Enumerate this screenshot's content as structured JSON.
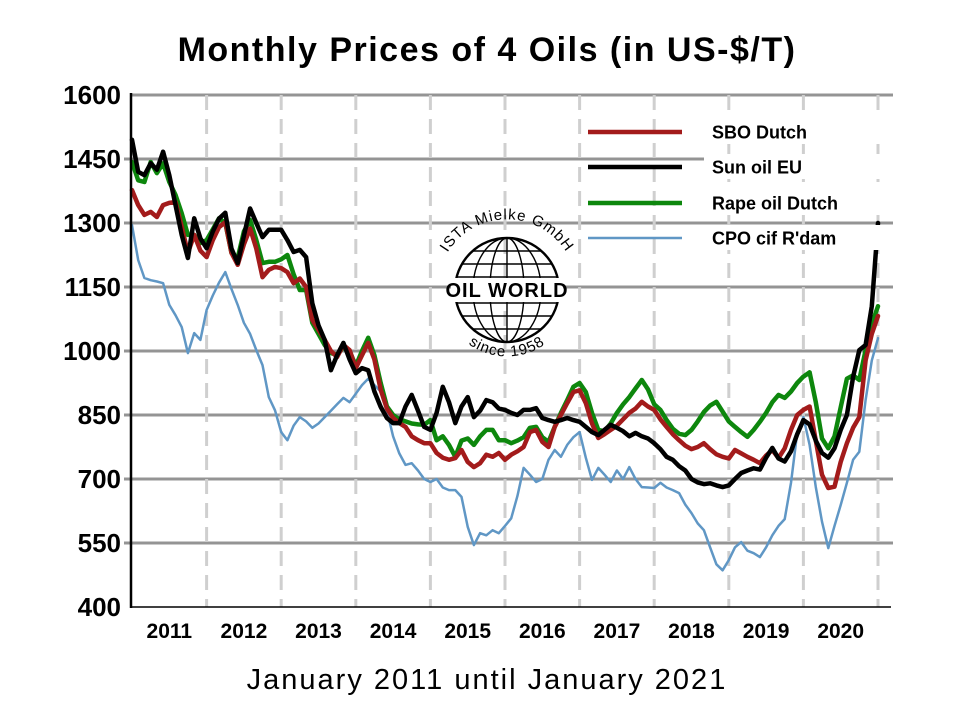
{
  "title": "Monthly Prices of 4 Oils (in US-$/T)",
  "x_axis_caption": "January 2011 until January 2021",
  "logo": {
    "top_text": "ISTA Mielke GmbH",
    "center_text": "OIL WORLD",
    "bottom_text": "since 1958"
  },
  "chart_data": {
    "type": "line",
    "title": "Monthly Prices of 4 Oils (in US-$/T)",
    "xlabel": "January 2011 until January 2021",
    "ylabel": "US-$/T",
    "ylim": [
      400,
      1600
    ],
    "y_ticks": [
      400,
      550,
      700,
      850,
      1000,
      1150,
      1300,
      1450,
      1600
    ],
    "x_tick_years": [
      "2011",
      "2012",
      "2013",
      "2014",
      "2015",
      "2016",
      "2017",
      "2018",
      "2019",
      "2020"
    ],
    "x_range_months": "Jan 2011 .. Jan 2021, 121 monthly points per series",
    "grid": {
      "horizontal": "solid gray",
      "vertical": "dashed light-gray at each January"
    },
    "legend_position": "top-right inside plot",
    "colors": {
      "sbo": "#A31B1B",
      "sun": "#000000",
      "rape": "#0D870D",
      "cpo": "#6097C5",
      "grid_h": "#949494",
      "grid_v": "#CFCFCF",
      "axis": "#000000"
    },
    "series": [
      {
        "name": "SBO Dutch",
        "color": "#A31B1B",
        "width": 4.5,
        "values": [
          1377,
          1342,
          1319,
          1326,
          1314,
          1342,
          1347,
          1349,
          1291,
          1230,
          1272,
          1235,
          1220,
          1260,
          1290,
          1302,
          1230,
          1202,
          1250,
          1287,
          1240,
          1173,
          1190,
          1197,
          1194,
          1185,
          1159,
          1170,
          1150,
          1073,
          1050,
          1026,
          1000,
          986,
          1014,
          1002,
          960,
          990,
          1019,
          980,
          909,
          865,
          843,
          831,
          822,
          800,
          791,
          784,
          784,
          761,
          750,
          745,
          749,
          768,
          740,
          728,
          737,
          757,
          752,
          761,
          745,
          757,
          765,
          775,
          810,
          815,
          787,
          775,
          822,
          850,
          878,
          904,
          908,
          878,
          830,
          796,
          805,
          815,
          825,
          840,
          855,
          865,
          881,
          870,
          862,
          840,
          822,
          805,
          791,
          778,
          770,
          775,
          784,
          770,
          758,
          752,
          748,
          768,
          760,
          752,
          745,
          737,
          755,
          768,
          749,
          772,
          815,
          850,
          862,
          870,
          790,
          710,
          679,
          682,
          740,
          784,
          820,
          845,
          978,
          1040,
          1082
        ]
      },
      {
        "name": "Sun oil EU",
        "color": "#000000",
        "width": 4.5,
        "values": [
          1495,
          1420,
          1412,
          1440,
          1425,
          1467,
          1412,
          1342,
          1272,
          1218,
          1311,
          1264,
          1241,
          1280,
          1310,
          1324,
          1240,
          1206,
          1270,
          1334,
          1300,
          1267,
          1284,
          1284,
          1284,
          1260,
          1232,
          1237,
          1220,
          1112,
          1060,
          1026,
          955,
          990,
          1019,
          980,
          948,
          960,
          955,
          905,
          869,
          843,
          831,
          831,
          870,
          897,
          860,
          822,
          815,
          855,
          916,
          880,
          831,
          870,
          892,
          845,
          860,
          885,
          880,
          865,
          862,
          855,
          850,
          862,
          862,
          866,
          843,
          838,
          834,
          838,
          843,
          838,
          834,
          822,
          810,
          803,
          815,
          827,
          820,
          812,
          800,
          808,
          800,
          795,
          784,
          770,
          752,
          745,
          730,
          720,
          700,
          692,
          688,
          690,
          685,
          681,
          685,
          700,
          714,
          720,
          725,
          722,
          750,
          773,
          748,
          741,
          765,
          805,
          838,
          828,
          790,
          761,
          750,
          772,
          815,
          850,
          939,
          1002,
          1014,
          1105,
          1300
        ]
      },
      {
        "name": "Rape oil Dutch",
        "color": "#0D870D",
        "width": 4.5,
        "values": [
          1443,
          1400,
          1396,
          1443,
          1417,
          1440,
          1396,
          1366,
          1323,
          1272,
          1272,
          1253,
          1260,
          1285,
          1311,
          1300,
          1230,
          1218,
          1280,
          1307,
          1260,
          1206,
          1209,
          1209,
          1215,
          1225,
          1180,
          1143,
          1143,
          1066,
          1040,
          1014,
          995,
          991,
          1009,
          1000,
          965,
          1000,
          1031,
          990,
          925,
          870,
          850,
          840,
          835,
          830,
          828,
          827,
          838,
          791,
          800,
          780,
          752,
          790,
          795,
          780,
          800,
          815,
          815,
          791,
          791,
          784,
          790,
          798,
          820,
          822,
          798,
          787,
          822,
          855,
          885,
          916,
          925,
          904,
          855,
          815,
          812,
          830,
          855,
          875,
          892,
          912,
          932,
          910,
          875,
          862,
          838,
          818,
          806,
          803,
          815,
          835,
          857,
          872,
          881,
          858,
          835,
          822,
          810,
          799,
          815,
          834,
          855,
          880,
          897,
          890,
          905,
          925,
          940,
          950,
          880,
          795,
          772,
          800,
          868,
          935,
          943,
          932,
          1002,
          1063,
          1105
        ]
      },
      {
        "name": "CPO cif R'dam",
        "color": "#6097C5",
        "width": 2.5,
        "values": [
          1295,
          1213,
          1171,
          1166,
          1163,
          1159,
          1108,
          1084,
          1056,
          995,
          1042,
          1026,
          1096,
          1130,
          1160,
          1185,
          1145,
          1108,
          1066,
          1040,
          1002,
          967,
          892,
          861,
          810,
          791,
          825,
          845,
          835,
          820,
          830,
          845,
          860,
          875,
          890,
          880,
          900,
          920,
          935,
          920,
          905,
          860,
          800,
          760,
          733,
          737,
          720,
          700,
          693,
          700,
          680,
          674,
          674,
          658,
          588,
          545,
          573,
          568,
          580,
          573,
          590,
          608,
          660,
          726,
          710,
          693,
          700,
          745,
          768,
          752,
          780,
          798,
          810,
          750,
          698,
          726,
          710,
          693,
          720,
          700,
          728,
          700,
          681,
          680,
          679,
          691,
          680,
          674,
          667,
          640,
          620,
          596,
          580,
          540,
          500,
          486,
          510,
          540,
          552,
          532,
          526,
          517,
          540,
          568,
          590,
          606,
          691,
          808,
          845,
          780,
          681,
          600,
          538,
          590,
          639,
          691,
          745,
          764,
          885,
          978,
          1030
        ]
      }
    ]
  }
}
